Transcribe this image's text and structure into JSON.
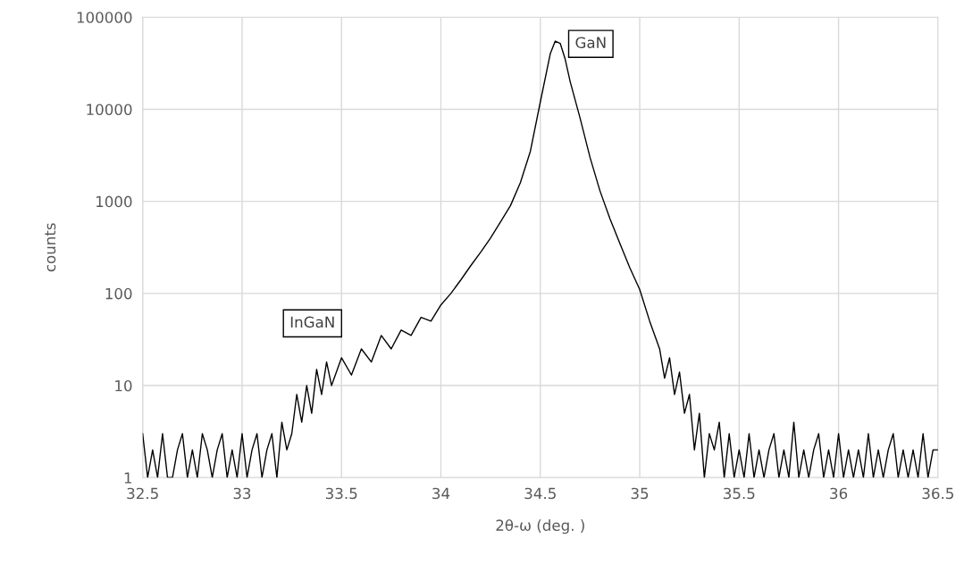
{
  "chart_data": {
    "type": "line",
    "xlabel": "2θ-ω (deg. )",
    "ylabel": "counts",
    "log": "y",
    "grid": true,
    "marker": "none",
    "line_style": "solid",
    "xlim": [
      32.5,
      36.5
    ],
    "xticks": [
      32.5,
      33,
      33.5,
      34,
      34.5,
      35,
      35.5,
      36,
      36.5
    ],
    "ylim": [
      1,
      100000
    ],
    "yticks": [
      1,
      10,
      100,
      1000,
      10000,
      100000
    ],
    "annotations": [
      "GaN",
      "InGaN"
    ],
    "series": [
      {
        "color": "#000000",
        "x": [
          32.5,
          32.525,
          32.55,
          32.575,
          32.6,
          32.625,
          32.65,
          32.675,
          32.7,
          32.725,
          32.75,
          32.775,
          32.8,
          32.825,
          32.85,
          32.875,
          32.9,
          32.925,
          32.95,
          32.975,
          33.0,
          33.025,
          33.05,
          33.075,
          33.1,
          33.125,
          33.15,
          33.175,
          33.2,
          33.225,
          33.25,
          33.275,
          33.3,
          33.325,
          33.35,
          33.375,
          33.4,
          33.425,
          33.45,
          33.5,
          33.55,
          33.6,
          33.65,
          33.7,
          33.75,
          33.8,
          33.85,
          33.9,
          33.95,
          34.0,
          34.05,
          34.1,
          34.15,
          34.2,
          34.25,
          34.3,
          34.35,
          34.4,
          34.45,
          34.5,
          34.55,
          34.575,
          34.6,
          34.625,
          34.65,
          34.7,
          34.75,
          34.8,
          34.85,
          34.9,
          34.95,
          35.0,
          35.05,
          35.1,
          35.125,
          35.15,
          35.175,
          35.2,
          35.225,
          35.25,
          35.275,
          35.3,
          35.325,
          35.35,
          35.375,
          35.4,
          35.425,
          35.45,
          35.475,
          35.5,
          35.525,
          35.55,
          35.575,
          35.6,
          35.625,
          35.65,
          35.675,
          35.7,
          35.725,
          35.75,
          35.775,
          35.8,
          35.825,
          35.85,
          35.875,
          35.9,
          35.925,
          35.95,
          35.975,
          36.0,
          36.025,
          36.05,
          36.075,
          36.1,
          36.125,
          36.15,
          36.175,
          36.2,
          36.225,
          36.25,
          36.275,
          36.3,
          36.325,
          36.35,
          36.375,
          36.4,
          36.425,
          36.45,
          36.475,
          36.5
        ],
        "values": [
          3,
          1,
          2,
          1,
          3,
          1,
          1,
          2,
          3,
          1,
          2,
          1,
          3,
          2,
          1,
          2,
          3,
          1,
          2,
          1,
          3,
          1,
          2,
          3,
          1,
          2,
          3,
          1,
          4,
          2,
          3,
          8,
          4,
          10,
          5,
          15,
          8,
          18,
          10,
          20,
          13,
          25,
          18,
          35,
          25,
          40,
          35,
          55,
          50,
          75,
          100,
          140,
          200,
          280,
          400,
          600,
          900,
          1600,
          3500,
          12000,
          40000,
          55000,
          52000,
          35000,
          20000,
          8000,
          3000,
          1300,
          650,
          350,
          190,
          110,
          50,
          25,
          12,
          20,
          8,
          14,
          5,
          8,
          2,
          5,
          1,
          3,
          2,
          4,
          1,
          3,
          1,
          2,
          1,
          3,
          1,
          2,
          1,
          2,
          3,
          1,
          2,
          1,
          4,
          1,
          2,
          1,
          2,
          3,
          1,
          2,
          1,
          3,
          1,
          2,
          1,
          2,
          1,
          3,
          1,
          2,
          1,
          2,
          3,
          1,
          2,
          1,
          2,
          1,
          3,
          1,
          2,
          2
        ]
      }
    ]
  }
}
